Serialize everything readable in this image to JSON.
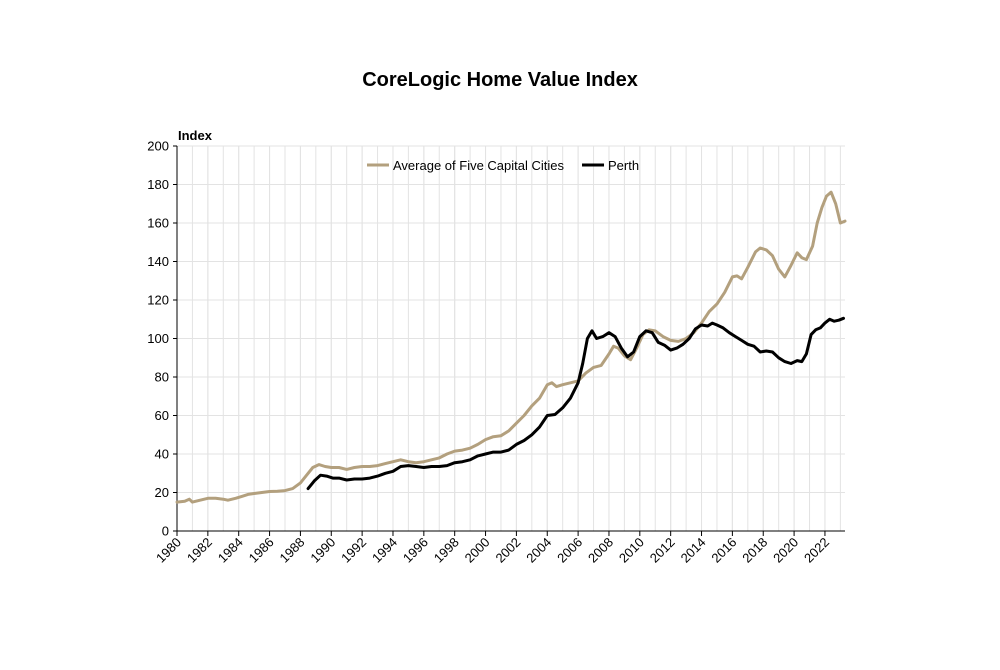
{
  "chart_data": {
    "type": "line",
    "title": "CoreLogic Home Value Index",
    "ylabel": "Index",
    "xlabel": "",
    "xlim": [
      1980,
      2023.3
    ],
    "ylim": [
      0,
      200
    ],
    "yticks": [
      0,
      20,
      40,
      60,
      80,
      100,
      120,
      140,
      160,
      180,
      200
    ],
    "xticks": [
      1980,
      1982,
      1984,
      1986,
      1988,
      1990,
      1992,
      1994,
      1996,
      1998,
      2000,
      2002,
      2004,
      2006,
      2008,
      2010,
      2012,
      2014,
      2016,
      2018,
      2020,
      2022
    ],
    "grid": true,
    "legend_position": "top",
    "series": [
      {
        "name": "Average of Five Capital Cities",
        "color": "#b3a07e",
        "points": [
          [
            1980,
            15
          ],
          [
            1980.5,
            15.5
          ],
          [
            1980.8,
            16.5
          ],
          [
            1981,
            15
          ],
          [
            1981.5,
            16
          ],
          [
            1982,
            17
          ],
          [
            1982.5,
            17
          ],
          [
            1983,
            16.5
          ],
          [
            1983.3,
            16
          ],
          [
            1983.8,
            17
          ],
          [
            1984.2,
            18
          ],
          [
            1984.6,
            19
          ],
          [
            1985,
            19.5
          ],
          [
            1985.5,
            20
          ],
          [
            1986,
            20.5
          ],
          [
            1986.5,
            20.7
          ],
          [
            1987,
            21
          ],
          [
            1987.5,
            22
          ],
          [
            1988,
            25
          ],
          [
            1988.4,
            29
          ],
          [
            1988.8,
            33
          ],
          [
            1989.2,
            34.5
          ],
          [
            1989.6,
            33.5
          ],
          [
            1990,
            33
          ],
          [
            1990.5,
            33
          ],
          [
            1991,
            32
          ],
          [
            1991.5,
            33
          ],
          [
            1992,
            33.5
          ],
          [
            1992.5,
            33.5
          ],
          [
            1993,
            34
          ],
          [
            1993.5,
            35
          ],
          [
            1994,
            36
          ],
          [
            1994.5,
            37
          ],
          [
            1995,
            36
          ],
          [
            1995.5,
            35.5
          ],
          [
            1996,
            36
          ],
          [
            1996.5,
            37
          ],
          [
            1997,
            38
          ],
          [
            1997.5,
            40
          ],
          [
            1998,
            41.5
          ],
          [
            1998.5,
            42
          ],
          [
            1999,
            43
          ],
          [
            1999.5,
            45
          ],
          [
            2000,
            47.5
          ],
          [
            2000.5,
            49
          ],
          [
            2001,
            49.5
          ],
          [
            2001.5,
            52
          ],
          [
            2002,
            56
          ],
          [
            2002.5,
            60
          ],
          [
            2003,
            65
          ],
          [
            2003.5,
            69
          ],
          [
            2004,
            76
          ],
          [
            2004.3,
            77
          ],
          [
            2004.6,
            75
          ],
          [
            2005,
            76
          ],
          [
            2005.5,
            77
          ],
          [
            2006,
            78
          ],
          [
            2006.5,
            82
          ],
          [
            2007,
            85
          ],
          [
            2007.5,
            86
          ],
          [
            2008,
            92
          ],
          [
            2008.3,
            96
          ],
          [
            2008.6,
            95
          ],
          [
            2009,
            91
          ],
          [
            2009.4,
            89
          ],
          [
            2009.8,
            95
          ],
          [
            2010.2,
            102
          ],
          [
            2010.6,
            104.5
          ],
          [
            2011,
            104
          ],
          [
            2011.5,
            101
          ],
          [
            2012,
            99
          ],
          [
            2012.5,
            98.5
          ],
          [
            2013,
            100
          ],
          [
            2013.5,
            103
          ],
          [
            2014,
            108
          ],
          [
            2014.5,
            114
          ],
          [
            2015,
            118
          ],
          [
            2015.5,
            124
          ],
          [
            2016,
            132
          ],
          [
            2016.3,
            132.5
          ],
          [
            2016.6,
            131
          ],
          [
            2017,
            137
          ],
          [
            2017.5,
            145
          ],
          [
            2017.8,
            147
          ],
          [
            2018.2,
            146
          ],
          [
            2018.6,
            143
          ],
          [
            2019,
            136
          ],
          [
            2019.4,
            132
          ],
          [
            2019.8,
            138
          ],
          [
            2020.2,
            144.5
          ],
          [
            2020.5,
            142
          ],
          [
            2020.8,
            141
          ],
          [
            2021.2,
            148
          ],
          [
            2021.5,
            160
          ],
          [
            2021.8,
            168
          ],
          [
            2022.1,
            174
          ],
          [
            2022.4,
            176
          ],
          [
            2022.7,
            170
          ],
          [
            2023,
            160
          ],
          [
            2023.3,
            161
          ]
        ]
      },
      {
        "name": "Perth",
        "color": "#000000",
        "points": [
          [
            1988.5,
            22
          ],
          [
            1988.9,
            26
          ],
          [
            1989.3,
            29
          ],
          [
            1989.7,
            28.5
          ],
          [
            1990.1,
            27.5
          ],
          [
            1990.5,
            27.5
          ],
          [
            1991,
            26.5
          ],
          [
            1991.5,
            27
          ],
          [
            1992,
            27
          ],
          [
            1992.5,
            27.5
          ],
          [
            1993,
            28.5
          ],
          [
            1993.5,
            30
          ],
          [
            1994,
            31
          ],
          [
            1994.5,
            33.5
          ],
          [
            1995,
            34
          ],
          [
            1995.5,
            33.5
          ],
          [
            1996,
            33
          ],
          [
            1996.5,
            33.5
          ],
          [
            1997,
            33.5
          ],
          [
            1997.5,
            34
          ],
          [
            1998,
            35.5
          ],
          [
            1998.5,
            36
          ],
          [
            1999,
            37
          ],
          [
            1999.5,
            39
          ],
          [
            2000,
            40
          ],
          [
            2000.5,
            41
          ],
          [
            2001,
            41
          ],
          [
            2001.5,
            42
          ],
          [
            2002,
            45
          ],
          [
            2002.5,
            47
          ],
          [
            2003,
            50
          ],
          [
            2003.5,
            54
          ],
          [
            2004,
            60
          ],
          [
            2004.5,
            60.5
          ],
          [
            2005,
            64
          ],
          [
            2005.5,
            69
          ],
          [
            2006,
            77
          ],
          [
            2006.3,
            87
          ],
          [
            2006.6,
            100
          ],
          [
            2006.9,
            104
          ],
          [
            2007.2,
            100
          ],
          [
            2007.6,
            101
          ],
          [
            2008,
            103
          ],
          [
            2008.4,
            101
          ],
          [
            2008.8,
            95
          ],
          [
            2009.2,
            90.5
          ],
          [
            2009.6,
            93
          ],
          [
            2010,
            101
          ],
          [
            2010.4,
            104
          ],
          [
            2010.8,
            103
          ],
          [
            2011.2,
            98
          ],
          [
            2011.6,
            96.5
          ],
          [
            2012,
            94
          ],
          [
            2012.4,
            95
          ],
          [
            2012.8,
            97
          ],
          [
            2013.2,
            100
          ],
          [
            2013.6,
            105
          ],
          [
            2014,
            107
          ],
          [
            2014.4,
            106.5
          ],
          [
            2014.7,
            108
          ],
          [
            2015,
            107
          ],
          [
            2015.4,
            105.5
          ],
          [
            2015.8,
            103
          ],
          [
            2016.2,
            101
          ],
          [
            2016.6,
            99
          ],
          [
            2017,
            97
          ],
          [
            2017.4,
            96
          ],
          [
            2017.8,
            93
          ],
          [
            2018.2,
            93.5
          ],
          [
            2018.6,
            93
          ],
          [
            2019,
            90
          ],
          [
            2019.4,
            88
          ],
          [
            2019.8,
            87
          ],
          [
            2020.2,
            88.5
          ],
          [
            2020.5,
            88
          ],
          [
            2020.8,
            92
          ],
          [
            2021.1,
            102
          ],
          [
            2021.4,
            104.5
          ],
          [
            2021.7,
            105.5
          ],
          [
            2022,
            108
          ],
          [
            2022.3,
            110
          ],
          [
            2022.6,
            109
          ],
          [
            2022.9,
            109.5
          ],
          [
            2023.2,
            110.5
          ]
        ]
      }
    ]
  }
}
